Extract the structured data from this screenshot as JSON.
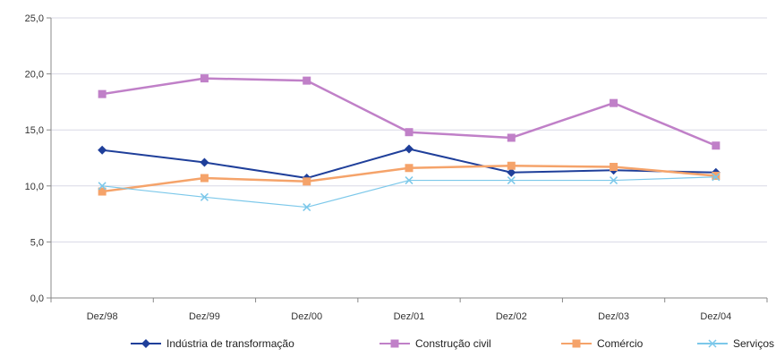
{
  "chart_data": {
    "type": "line",
    "title": "",
    "xlabel": "",
    "ylabel": "",
    "categories": [
      "Dez/98",
      "Dez/99",
      "Dez/00",
      "Dez/01",
      "Dez/02",
      "Dez/03",
      "Dez/04"
    ],
    "ylim": [
      0,
      25
    ],
    "yticks": [
      "0,0",
      "5,0",
      "10,0",
      "15,0",
      "20,0",
      "25,0"
    ],
    "grid": true,
    "legend_position": "bottom",
    "series": [
      {
        "name": "Indústria de transformação",
        "color": "#1f3f9a",
        "marker": "diamond",
        "values": [
          13.2,
          12.1,
          10.7,
          13.3,
          11.2,
          11.4,
          11.2
        ]
      },
      {
        "name": "Construção civil",
        "color": "#c080c8",
        "marker": "square",
        "values": [
          18.2,
          19.6,
          19.4,
          14.8,
          14.3,
          17.4,
          13.6
        ]
      },
      {
        "name": "Comércio",
        "color": "#f5a36a",
        "marker": "square",
        "values": [
          9.5,
          10.7,
          10.4,
          11.6,
          11.8,
          11.7,
          10.9
        ]
      },
      {
        "name": "Serviços",
        "color": "#7cc8ea",
        "marker": "x",
        "values": [
          10.0,
          9.0,
          8.1,
          10.5,
          10.5,
          10.5,
          10.8
        ]
      }
    ]
  }
}
